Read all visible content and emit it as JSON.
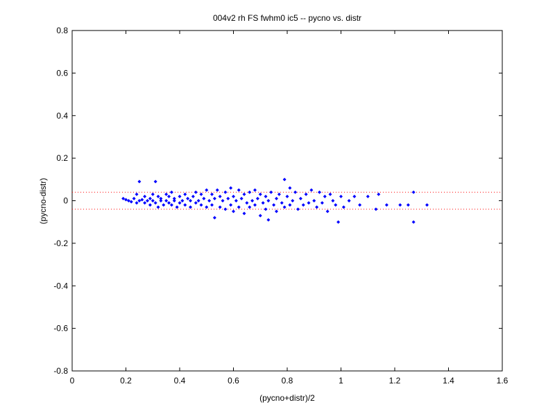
{
  "chart_data": {
    "type": "scatter",
    "title": "004v2 rh FS fwhm0 ic5 -- pycno vs. distr",
    "x_label": "(pycno+distr)/2",
    "y_label": "(pycno-distr)",
    "color": "#0000ff",
    "xlim": [
      0,
      1.6
    ],
    "xticks": [
      0,
      0.2,
      0.4,
      0.6,
      0.8,
      1,
      1.2,
      1.4,
      1.6
    ],
    "ylim": [
      -0.8,
      0.8
    ],
    "yticks": [
      -0.8,
      -0.6,
      -0.4,
      -0.2,
      0,
      0.2,
      0.4,
      0.6,
      0.8
    ],
    "hlines": [
      0.04,
      -0.04
    ],
    "hline_color": "#ff0000",
    "x": [
      0.19,
      0.2,
      0.21,
      0.22,
      0.23,
      0.24,
      0.24,
      0.25,
      0.25,
      0.26,
      0.27,
      0.27,
      0.28,
      0.29,
      0.29,
      0.3,
      0.3,
      0.31,
      0.31,
      0.32,
      0.32,
      0.33,
      0.33,
      0.34,
      0.35,
      0.35,
      0.36,
      0.36,
      0.37,
      0.37,
      0.38,
      0.38,
      0.39,
      0.4,
      0.4,
      0.41,
      0.42,
      0.42,
      0.43,
      0.44,
      0.44,
      0.45,
      0.46,
      0.46,
      0.47,
      0.48,
      0.48,
      0.49,
      0.5,
      0.5,
      0.51,
      0.52,
      0.52,
      0.53,
      0.53,
      0.54,
      0.55,
      0.55,
      0.56,
      0.57,
      0.57,
      0.58,
      0.59,
      0.59,
      0.6,
      0.6,
      0.61,
      0.62,
      0.62,
      0.63,
      0.64,
      0.64,
      0.65,
      0.66,
      0.66,
      0.67,
      0.68,
      0.68,
      0.69,
      0.7,
      0.7,
      0.71,
      0.72,
      0.72,
      0.73,
      0.73,
      0.74,
      0.75,
      0.76,
      0.76,
      0.77,
      0.78,
      0.79,
      0.79,
      0.8,
      0.81,
      0.81,
      0.82,
      0.83,
      0.84,
      0.85,
      0.86,
      0.87,
      0.88,
      0.89,
      0.9,
      0.91,
      0.92,
      0.93,
      0.94,
      0.95,
      0.96,
      0.97,
      0.98,
      0.99,
      1.0,
      1.01,
      1.03,
      1.05,
      1.07,
      1.1,
      1.13,
      1.14,
      1.17,
      1.22,
      1.25,
      1.27,
      1.27,
      1.32
    ],
    "values": [
      0.01,
      0.005,
      0.0,
      -0.005,
      0.01,
      0.03,
      -0.01,
      0.09,
      0.0,
      0.005,
      -0.01,
      0.02,
      0.0,
      0.01,
      -0.02,
      0.03,
      0.0,
      0.09,
      -0.01,
      0.02,
      -0.03,
      0.01,
      0.0,
      -0.02,
      0.03,
      0.0,
      -0.01,
      0.02,
      0.04,
      -0.02,
      0.0,
      0.01,
      -0.03,
      0.02,
      -0.01,
      0.0,
      0.03,
      -0.02,
      0.01,
      0.0,
      -0.03,
      0.02,
      -0.01,
      0.04,
      0.0,
      -0.02,
      0.03,
      0.01,
      -0.03,
      0.05,
      0.0,
      -0.02,
      0.03,
      -0.08,
      0.01,
      0.05,
      -0.03,
      0.02,
      0.0,
      -0.04,
      0.04,
      0.01,
      -0.02,
      0.06,
      -0.05,
      0.02,
      0.0,
      -0.03,
      0.05,
      0.01,
      -0.06,
      0.03,
      -0.01,
      0.04,
      -0.03,
      0.0,
      -0.02,
      0.05,
      0.01,
      -0.07,
      0.03,
      -0.01,
      0.02,
      -0.04,
      -0.09,
      0.0,
      0.04,
      -0.02,
      0.01,
      -0.05,
      0.03,
      -0.01,
      0.1,
      -0.03,
      0.02,
      0.06,
      -0.02,
      0.0,
      0.04,
      -0.04,
      0.01,
      -0.02,
      0.03,
      -0.01,
      0.05,
      0.0,
      -0.03,
      0.04,
      -0.01,
      0.02,
      -0.05,
      0.03,
      0.0,
      -0.02,
      -0.1,
      0.02,
      -0.03,
      0.0,
      0.02,
      -0.02,
      0.02,
      -0.04,
      0.03,
      -0.02,
      -0.02,
      -0.02,
      0.04,
      -0.1,
      -0.02
    ]
  }
}
